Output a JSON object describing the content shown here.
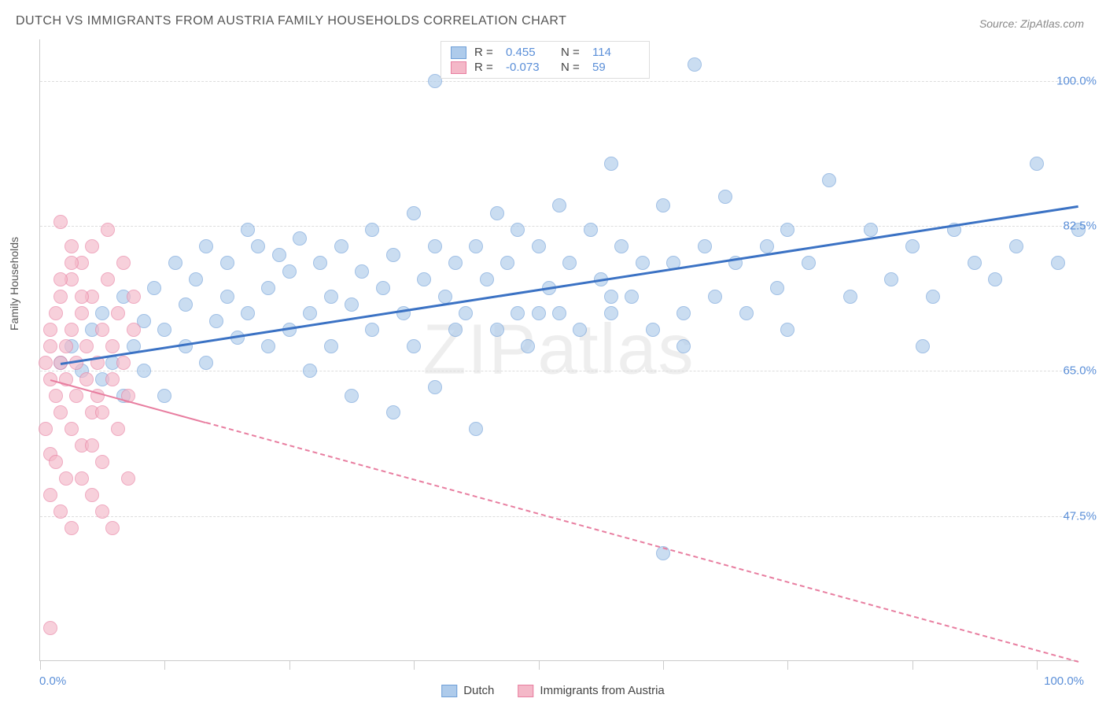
{
  "title": "DUTCH VS IMMIGRANTS FROM AUSTRIA FAMILY HOUSEHOLDS CORRELATION CHART",
  "source": "Source: ZipAtlas.com",
  "watermark": "ZIPatlas",
  "y_axis_label": "Family Households",
  "chart": {
    "type": "scatter",
    "background_color": "#ffffff",
    "grid_color": "#dddddd",
    "axis_color": "#cccccc",
    "xlim": [
      0,
      100
    ],
    "ylim": [
      30,
      105
    ],
    "y_ticks": [
      {
        "value": 100.0,
        "label": "100.0%"
      },
      {
        "value": 82.5,
        "label": "82.5%"
      },
      {
        "value": 65.0,
        "label": "65.0%"
      },
      {
        "value": 47.5,
        "label": "47.5%"
      }
    ],
    "x_tick_positions": [
      0,
      12,
      24,
      36,
      48,
      60,
      72,
      84,
      96
    ],
    "x_labels": {
      "min": "0.0%",
      "max": "100.0%"
    },
    "series": [
      {
        "name": "Dutch",
        "fill": "#aecbeb",
        "stroke": "#6f9fd8",
        "fill_opacity": 0.65,
        "marker_radius": 9,
        "r": "0.455",
        "n": "114",
        "trend": {
          "x1": 2,
          "y1": 66,
          "x2": 100,
          "y2": 85,
          "color": "#3b72c4",
          "width": 2.5,
          "dashed": false,
          "solid_until_x": 100
        },
        "points": [
          [
            2,
            66
          ],
          [
            3,
            68
          ],
          [
            4,
            65
          ],
          [
            5,
            70
          ],
          [
            6,
            64
          ],
          [
            6,
            72
          ],
          [
            7,
            66
          ],
          [
            8,
            62
          ],
          [
            8,
            74
          ],
          [
            9,
            68
          ],
          [
            10,
            65
          ],
          [
            10,
            71
          ],
          [
            11,
            75
          ],
          [
            12,
            62
          ],
          [
            12,
            70
          ],
          [
            13,
            78
          ],
          [
            14,
            68
          ],
          [
            14,
            73
          ],
          [
            15,
            76
          ],
          [
            16,
            66
          ],
          [
            16,
            80
          ],
          [
            17,
            71
          ],
          [
            18,
            78
          ],
          [
            18,
            74
          ],
          [
            19,
            69
          ],
          [
            20,
            82
          ],
          [
            20,
            72
          ],
          [
            21,
            80
          ],
          [
            22,
            68
          ],
          [
            22,
            75
          ],
          [
            23,
            79
          ],
          [
            24,
            70
          ],
          [
            24,
            77
          ],
          [
            25,
            81
          ],
          [
            26,
            72
          ],
          [
            26,
            65
          ],
          [
            27,
            78
          ],
          [
            28,
            74
          ],
          [
            28,
            68
          ],
          [
            29,
            80
          ],
          [
            30,
            73
          ],
          [
            30,
            62
          ],
          [
            31,
            77
          ],
          [
            32,
            82
          ],
          [
            32,
            70
          ],
          [
            33,
            75
          ],
          [
            34,
            60
          ],
          [
            34,
            79
          ],
          [
            35,
            72
          ],
          [
            36,
            84
          ],
          [
            36,
            68
          ],
          [
            37,
            76
          ],
          [
            38,
            80
          ],
          [
            38,
            63
          ],
          [
            39,
            74
          ],
          [
            40,
            78
          ],
          [
            40,
            70
          ],
          [
            41,
            72
          ],
          [
            42,
            58
          ],
          [
            42,
            80
          ],
          [
            43,
            76
          ],
          [
            44,
            84
          ],
          [
            44,
            70
          ],
          [
            45,
            78
          ],
          [
            46,
            72
          ],
          [
            46,
            82
          ],
          [
            47,
            68
          ],
          [
            48,
            80
          ],
          [
            49,
            75
          ],
          [
            50,
            72
          ],
          [
            50,
            85
          ],
          [
            51,
            78
          ],
          [
            52,
            70
          ],
          [
            53,
            82
          ],
          [
            54,
            76
          ],
          [
            55,
            90
          ],
          [
            55,
            72
          ],
          [
            56,
            80
          ],
          [
            57,
            74
          ],
          [
            58,
            78
          ],
          [
            59,
            70
          ],
          [
            60,
            85
          ],
          [
            60,
            43
          ],
          [
            61,
            78
          ],
          [
            62,
            72
          ],
          [
            63,
            102
          ],
          [
            64,
            80
          ],
          [
            65,
            74
          ],
          [
            66,
            86
          ],
          [
            67,
            78
          ],
          [
            68,
            72
          ],
          [
            70,
            80
          ],
          [
            71,
            75
          ],
          [
            72,
            82
          ],
          [
            74,
            78
          ],
          [
            76,
            88
          ],
          [
            78,
            74
          ],
          [
            80,
            82
          ],
          [
            82,
            76
          ],
          [
            84,
            80
          ],
          [
            86,
            74
          ],
          [
            88,
            82
          ],
          [
            90,
            78
          ],
          [
            92,
            76
          ],
          [
            94,
            80
          ],
          [
            96,
            90
          ],
          [
            98,
            78
          ],
          [
            100,
            82
          ],
          [
            85,
            68
          ],
          [
            72,
            70
          ],
          [
            38,
            100
          ],
          [
            48,
            72
          ],
          [
            62,
            68
          ],
          [
            55,
            74
          ]
        ]
      },
      {
        "name": "Immigrants from Austria",
        "fill": "#f4b8c8",
        "stroke": "#e87ea0",
        "fill_opacity": 0.65,
        "marker_radius": 9,
        "r": "-0.073",
        "n": "59",
        "trend": {
          "x1": 1,
          "y1": 64,
          "x2": 100,
          "y2": 30,
          "color": "#e87ea0",
          "width": 2,
          "dashed": true,
          "solid_until_x": 16
        },
        "points": [
          [
            0.5,
            66
          ],
          [
            1,
            68
          ],
          [
            1,
            64
          ],
          [
            1,
            70
          ],
          [
            1.5,
            62
          ],
          [
            1.5,
            72
          ],
          [
            2,
            66
          ],
          [
            2,
            60
          ],
          [
            2,
            74
          ],
          [
            2.5,
            68
          ],
          [
            2.5,
            64
          ],
          [
            3,
            58
          ],
          [
            3,
            70
          ],
          [
            3,
            76
          ],
          [
            3.5,
            66
          ],
          [
            3.5,
            62
          ],
          [
            4,
            72
          ],
          [
            4,
            56
          ],
          [
            4,
            78
          ],
          [
            4.5,
            68
          ],
          [
            4.5,
            64
          ],
          [
            5,
            60
          ],
          [
            5,
            74
          ],
          [
            5,
            80
          ],
          [
            5.5,
            66
          ],
          [
            5.5,
            62
          ],
          [
            6,
            70
          ],
          [
            6,
            54
          ],
          [
            6.5,
            76
          ],
          [
            6.5,
            82
          ],
          [
            7,
            68
          ],
          [
            7,
            64
          ],
          [
            7.5,
            58
          ],
          [
            7.5,
            72
          ],
          [
            8,
            66
          ],
          [
            8,
            78
          ],
          [
            8.5,
            62
          ],
          [
            8.5,
            52
          ],
          [
            9,
            70
          ],
          [
            9,
            74
          ],
          [
            1,
            50
          ],
          [
            2,
            48
          ],
          [
            3,
            46
          ],
          [
            4,
            52
          ],
          [
            5,
            50
          ],
          [
            6,
            48
          ],
          [
            7,
            46
          ],
          [
            1,
            55
          ],
          [
            2,
            83
          ],
          [
            3,
            80
          ],
          [
            1,
            34
          ],
          [
            2,
            76
          ],
          [
            3,
            78
          ],
          [
            4,
            74
          ],
          [
            5,
            56
          ],
          [
            6,
            60
          ],
          [
            0.5,
            58
          ],
          [
            1.5,
            54
          ],
          [
            2.5,
            52
          ]
        ]
      }
    ]
  },
  "stats_legend": {
    "rows": [
      {
        "swatch_fill": "#aecbeb",
        "swatch_stroke": "#6f9fd8",
        "r_label": "R =",
        "r": "0.455",
        "n_label": "N =",
        "n": "114"
      },
      {
        "swatch_fill": "#f4b8c8",
        "swatch_stroke": "#e87ea0",
        "r_label": "R =",
        "r": "-0.073",
        "n_label": "N =",
        "n": "59"
      }
    ]
  },
  "bottom_legend": [
    {
      "swatch_fill": "#aecbeb",
      "swatch_stroke": "#6f9fd8",
      "label": "Dutch"
    },
    {
      "swatch_fill": "#f4b8c8",
      "swatch_stroke": "#e87ea0",
      "label": "Immigrants from Austria"
    }
  ]
}
